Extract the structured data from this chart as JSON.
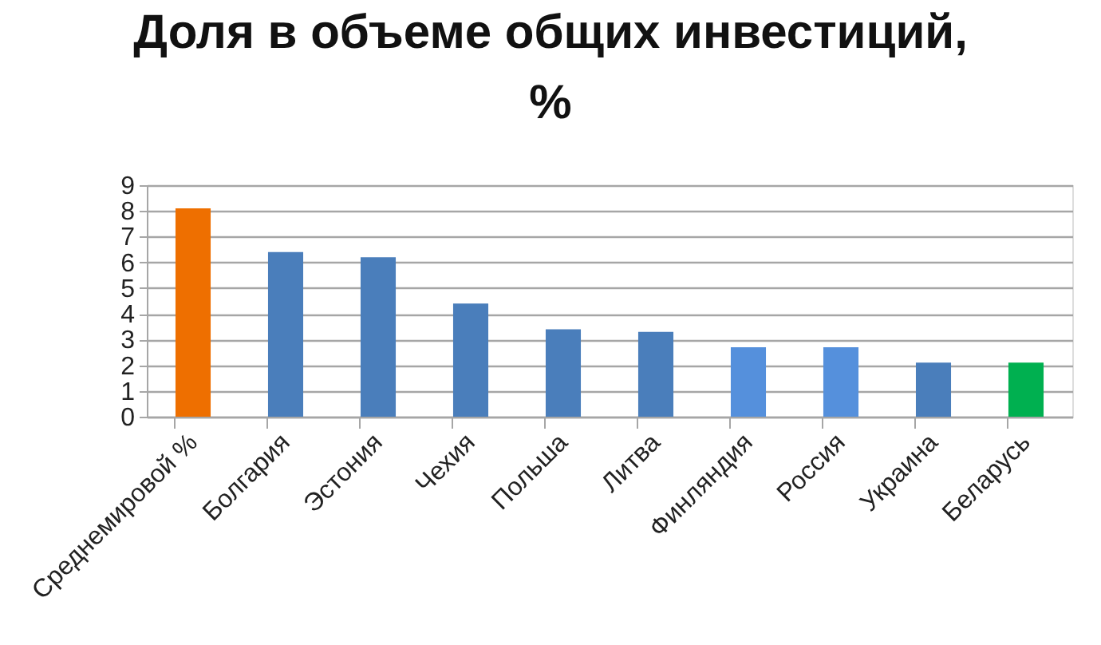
{
  "chart_data": {
    "type": "bar",
    "title": "Доля в объеме общих инвестиций, %",
    "categories": [
      "Среднемировой %",
      "Болгария",
      "Эстония",
      "Чехия",
      "Польша",
      "Литва",
      "Финляндия",
      "Россия",
      "Украина",
      "Беларусь"
    ],
    "values": [
      8.1,
      6.4,
      6.2,
      4.4,
      3.4,
      3.3,
      2.7,
      2.7,
      2.1,
      2.1
    ],
    "colors": [
      "#ee6f00",
      "#4a7ebb",
      "#4a7ebb",
      "#4a7ebb",
      "#4a7ebb",
      "#4a7ebb",
      "#5590dc",
      "#5590dc",
      "#4a7ebb",
      "#00b050"
    ],
    "ylim": [
      0,
      9
    ],
    "yticks": [
      0,
      1,
      2,
      3,
      4,
      5,
      6,
      7,
      8,
      9
    ],
    "grid": "y",
    "legend": false
  }
}
